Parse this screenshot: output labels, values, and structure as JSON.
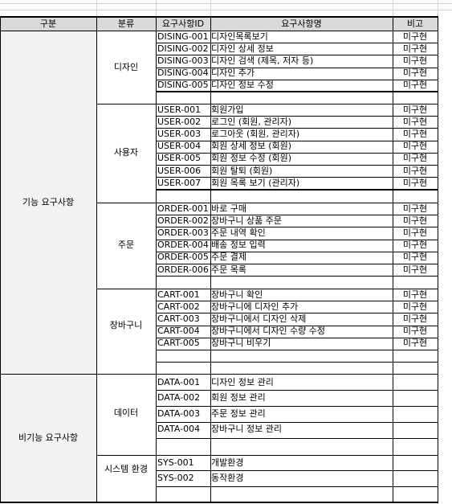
{
  "headers": {
    "category": "구분",
    "class": "분류",
    "id": "요구사항ID",
    "name": "요구사항명",
    "note": "비고"
  },
  "categories": {
    "functional": "기능 요구사항",
    "nonfunctional": "비기능 요구사항"
  },
  "groups": {
    "design": "디자인",
    "user": "사용자",
    "order": "주문",
    "cart": "장바구니",
    "data": "데이터",
    "system": "시스템 환경"
  },
  "rows": {
    "design": [
      {
        "id": "DISING-001",
        "name": "디자인목록보기",
        "note": "미구현"
      },
      {
        "id": "DISING-002",
        "name": "디자인 상세 정보",
        "note": "미구현"
      },
      {
        "id": "DISING-003",
        "name": "디자인 검색 (제목, 저자 등)",
        "note": "미구현"
      },
      {
        "id": "DISING-004",
        "name": "디자인 추가",
        "note": "미구현"
      },
      {
        "id": "DISING-005",
        "name": "디자인 정보 수정",
        "note": "미구현"
      }
    ],
    "user": [
      {
        "id": "USER-001",
        "name": "회원가입",
        "note": "미구현"
      },
      {
        "id": "USER-002",
        "name": "로그인 (회원, 관리자)",
        "note": "미구현"
      },
      {
        "id": "USER-003",
        "name": "로그아웃 (회원, 관리자)",
        "note": "미구현"
      },
      {
        "id": "USER-004",
        "name": "회원 상세 정보 (회원)",
        "note": "미구현"
      },
      {
        "id": "USER-005",
        "name": "회원 정보 수정 (회원)",
        "note": "미구현"
      },
      {
        "id": "USER-006",
        "name": "회원 탈퇴 (회원)",
        "note": "미구현"
      },
      {
        "id": "USER-007",
        "name": "회원 목록 보기 (관리자)",
        "note": "미구현"
      }
    ],
    "order": [
      {
        "id": "ORDER-001",
        "name": "바로 구매",
        "note": "미구현"
      },
      {
        "id": "ORDER-002",
        "name": "장바구니 상품 주문",
        "note": "미구현"
      },
      {
        "id": "ORDER-003",
        "name": "주문 내역 확인",
        "note": "미구현"
      },
      {
        "id": "ORDER-004",
        "name": "배송 정보 입력",
        "note": "미구현"
      },
      {
        "id": "ORDER-005",
        "name": "주문 결제",
        "note": "미구현"
      },
      {
        "id": "ORDER-006",
        "name": "주문 목록",
        "note": "미구현"
      }
    ],
    "cart": [
      {
        "id": "CART-001",
        "name": "장바구니 확인",
        "note": "미구현"
      },
      {
        "id": "CART-002",
        "name": "장바구니에 디자인 추가",
        "note": "미구현"
      },
      {
        "id": "CART-003",
        "name": "장바구니에서 디자인 삭제",
        "note": "미구현"
      },
      {
        "id": "CART-004",
        "name": "장바구니에서 디자인 수량 수정",
        "note": "미구현"
      },
      {
        "id": "CART-005",
        "name": "장바구니 비우기",
        "note": "미구현"
      }
    ],
    "data": [
      {
        "id": "DATA-001",
        "name": "디자인 정보 관리",
        "note": ""
      },
      {
        "id": "DATA-002",
        "name": "회원 정보 관리",
        "note": ""
      },
      {
        "id": "DATA-003",
        "name": "주문 정보 관리",
        "note": ""
      },
      {
        "id": "DATA-004",
        "name": "장바구니 정보 관리",
        "note": ""
      }
    ],
    "system": [
      {
        "id": "SYS-001",
        "name": "개발환경",
        "note": ""
      },
      {
        "id": "SYS-002",
        "name": "동작환경",
        "note": ""
      }
    ]
  }
}
